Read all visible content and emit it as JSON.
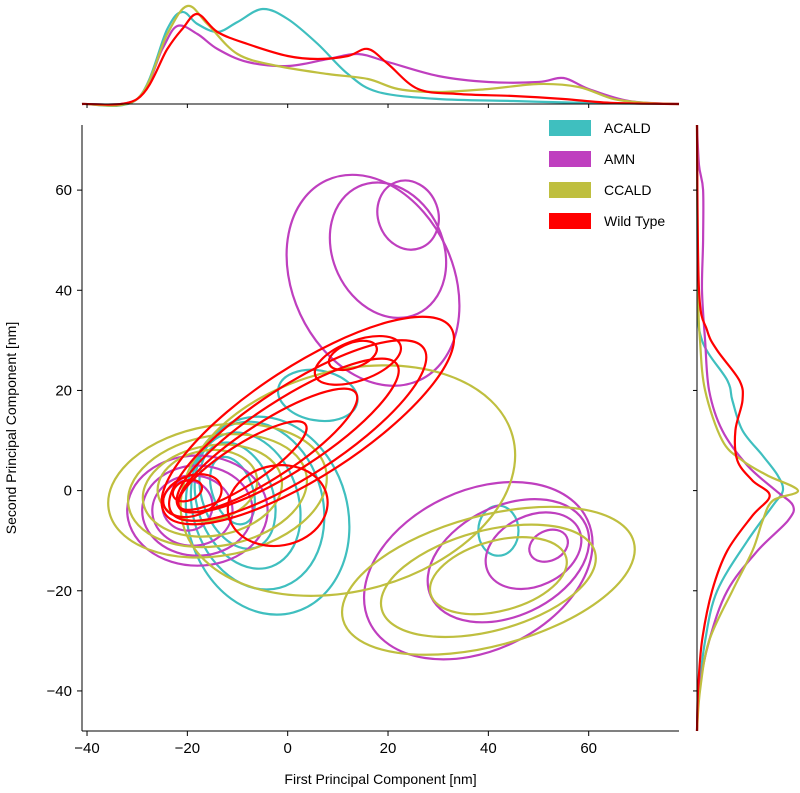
{
  "chart_data": {
    "type": "contour",
    "xlabel": "First Principal Component [nm]",
    "ylabel": "Second Principal Component [nm]",
    "xlim": [
      -41,
      78
    ],
    "ylim": [
      -48,
      73
    ],
    "xticks": [
      -40,
      -20,
      0,
      20,
      40,
      60
    ],
    "yticks": [
      -40,
      -20,
      0,
      20,
      40,
      60
    ],
    "xtick_labels": [
      "−40",
      "−20",
      "0",
      "20",
      "40",
      "60"
    ],
    "ytick_labels": [
      "−40",
      "−20",
      "0",
      "20",
      "40",
      "60"
    ],
    "legend_position": "top-right",
    "grid": false,
    "series": [
      {
        "name": "ACALD",
        "color": "#3fbfbf",
        "contours": [
          {
            "cx": -4,
            "cy": -5,
            "rx": 16,
            "ry": 20,
            "rot": -15
          },
          {
            "cx": -6,
            "cy": -3,
            "rx": 13,
            "ry": 17,
            "rot": -15
          },
          {
            "cx": -8,
            "cy": -2,
            "rx": 10,
            "ry": 14,
            "rot": -20
          },
          {
            "cx": -10,
            "cy": -1,
            "rx": 7,
            "ry": 11,
            "rot": -20
          },
          {
            "cx": -11,
            "cy": 0,
            "rx": 4,
            "ry": 7,
            "rot": -20
          },
          {
            "cx": 6,
            "cy": 19,
            "rx": 8,
            "ry": 5,
            "rot": 10
          },
          {
            "cx": 42,
            "cy": -8,
            "rx": 4,
            "ry": 5,
            "rot": 0
          }
        ],
        "marginal_x": [
          [
            -41,
            0
          ],
          [
            -30,
            0.05
          ],
          [
            -24,
            0.75
          ],
          [
            -21,
            0.92
          ],
          [
            -18,
            0.8
          ],
          [
            -14,
            0.72
          ],
          [
            -10,
            0.82
          ],
          [
            -5,
            0.95
          ],
          [
            0,
            0.85
          ],
          [
            6,
            0.6
          ],
          [
            12,
            0.3
          ],
          [
            18,
            0.12
          ],
          [
            30,
            0.05
          ],
          [
            45,
            0.03
          ],
          [
            60,
            0.01
          ],
          [
            78,
            0
          ]
        ],
        "marginal_y": [
          [
            -48,
            0
          ],
          [
            -40,
            0.02
          ],
          [
            -30,
            0.08
          ],
          [
            -20,
            0.2
          ],
          [
            -10,
            0.5
          ],
          [
            -3,
            0.75
          ],
          [
            0,
            0.85
          ],
          [
            3,
            0.8
          ],
          [
            7,
            0.65
          ],
          [
            12,
            0.45
          ],
          [
            18,
            0.35
          ],
          [
            22,
            0.3
          ],
          [
            30,
            0.05
          ],
          [
            40,
            0.01
          ],
          [
            73,
            0
          ]
        ]
      },
      {
        "name": "AMN",
        "color": "#bf3fbf",
        "contours": [
          {
            "cx": -18,
            "cy": -4,
            "rx": 14,
            "ry": 11,
            "rot": 0
          },
          {
            "cx": -18,
            "cy": -4,
            "rx": 11,
            "ry": 9,
            "rot": 0
          },
          {
            "cx": -19,
            "cy": -4,
            "rx": 8,
            "ry": 7,
            "rot": 0
          },
          {
            "cx": -20,
            "cy": -3,
            "rx": 5,
            "ry": 5,
            "rot": 0
          },
          {
            "cx": 17,
            "cy": 42,
            "rx": 16,
            "ry": 22,
            "rot": -25
          },
          {
            "cx": 20,
            "cy": 48,
            "rx": 11,
            "ry": 14,
            "rot": -25
          },
          {
            "cx": 24,
            "cy": 55,
            "rx": 6,
            "ry": 7,
            "rot": -20
          },
          {
            "cx": 38,
            "cy": -16,
            "rx": 24,
            "ry": 16,
            "rot": -25
          },
          {
            "cx": 44,
            "cy": -14,
            "rx": 17,
            "ry": 11,
            "rot": -25
          },
          {
            "cx": 49,
            "cy": -12,
            "rx": 10,
            "ry": 7,
            "rot": -25
          },
          {
            "cx": 52,
            "cy": -11,
            "rx": 4,
            "ry": 3,
            "rot": -25
          }
        ],
        "marginal_x": [
          [
            -41,
            0
          ],
          [
            -30,
            0.05
          ],
          [
            -25,
            0.55
          ],
          [
            -22,
            0.78
          ],
          [
            -18,
            0.7
          ],
          [
            -14,
            0.55
          ],
          [
            -8,
            0.42
          ],
          [
            0,
            0.38
          ],
          [
            8,
            0.45
          ],
          [
            14,
            0.5
          ],
          [
            20,
            0.42
          ],
          [
            30,
            0.28
          ],
          [
            40,
            0.22
          ],
          [
            50,
            0.22
          ],
          [
            55,
            0.26
          ],
          [
            60,
            0.15
          ],
          [
            68,
            0.03
          ],
          [
            78,
            0
          ]
        ],
        "marginal_y": [
          [
            -48,
            0
          ],
          [
            -40,
            0.02
          ],
          [
            -30,
            0.12
          ],
          [
            -20,
            0.3
          ],
          [
            -12,
            0.6
          ],
          [
            -6,
            0.9
          ],
          [
            -3,
            0.95
          ],
          [
            0,
            0.78
          ],
          [
            5,
            0.5
          ],
          [
            12,
            0.25
          ],
          [
            20,
            0.12
          ],
          [
            30,
            0.08
          ],
          [
            40,
            0.05
          ],
          [
            50,
            0.06
          ],
          [
            60,
            0.06
          ],
          [
            65,
            0.02
          ],
          [
            73,
            0
          ]
        ]
      },
      {
        "name": "CCALD",
        "color": "#bfbf3f",
        "contours": [
          {
            "cx": -14,
            "cy": 0,
            "rx": 22,
            "ry": 13,
            "rot": -10
          },
          {
            "cx": -14,
            "cy": 0,
            "rx": 18,
            "ry": 11,
            "rot": -10
          },
          {
            "cx": -15,
            "cy": 0,
            "rx": 14,
            "ry": 9,
            "rot": -10
          },
          {
            "cx": -16,
            "cy": 1,
            "rx": 10,
            "ry": 7,
            "rot": -10
          },
          {
            "cx": 12,
            "cy": 2,
            "rx": 34,
            "ry": 22,
            "rot": -15
          },
          {
            "cx": 40,
            "cy": -18,
            "rx": 30,
            "ry": 13,
            "rot": -15
          },
          {
            "cx": 40,
            "cy": -18,
            "rx": 22,
            "ry": 10,
            "rot": -15
          },
          {
            "cx": 42,
            "cy": -17,
            "rx": 14,
            "ry": 7,
            "rot": -15
          }
        ],
        "marginal_x": [
          [
            -41,
            0
          ],
          [
            -30,
            0.05
          ],
          [
            -24,
            0.7
          ],
          [
            -20,
            0.98
          ],
          [
            -16,
            0.8
          ],
          [
            -10,
            0.5
          ],
          [
            -2,
            0.38
          ],
          [
            8,
            0.3
          ],
          [
            16,
            0.25
          ],
          [
            22,
            0.15
          ],
          [
            30,
            0.12
          ],
          [
            40,
            0.15
          ],
          [
            50,
            0.2
          ],
          [
            58,
            0.17
          ],
          [
            65,
            0.05
          ],
          [
            72,
            0.01
          ],
          [
            78,
            0
          ]
        ],
        "marginal_y": [
          [
            -48,
            0
          ],
          [
            -40,
            0.03
          ],
          [
            -30,
            0.12
          ],
          [
            -20,
            0.35
          ],
          [
            -12,
            0.55
          ],
          [
            -6,
            0.65
          ],
          [
            -2,
            0.75
          ],
          [
            0,
            1.0
          ],
          [
            3,
            0.7
          ],
          [
            6,
            0.45
          ],
          [
            10,
            0.25
          ],
          [
            20,
            0.08
          ],
          [
            30,
            0.03
          ],
          [
            40,
            0.01
          ],
          [
            73,
            0
          ]
        ]
      },
      {
        "name": "Wild Type",
        "color": "#ff0000",
        "contours": [
          {
            "cx": 4,
            "cy": 14,
            "rx": 34,
            "ry": 11,
            "rot": -33
          },
          {
            "cx": 2,
            "cy": 12,
            "rx": 30,
            "ry": 9,
            "rot": -33
          },
          {
            "cx": 0,
            "cy": 11,
            "rx": 26,
            "ry": 7,
            "rot": -33
          },
          {
            "cx": -4,
            "cy": 8,
            "rx": 21,
            "ry": 5.5,
            "rot": -33
          },
          {
            "cx": -9,
            "cy": 5,
            "rx": 15,
            "ry": 4,
            "rot": -33
          },
          {
            "cx": -19,
            "cy": -1,
            "rx": 6,
            "ry": 4,
            "rot": -20
          },
          {
            "cx": -20,
            "cy": 0,
            "rx": 3,
            "ry": 2,
            "rot": -20
          },
          {
            "cx": 14,
            "cy": 26,
            "rx": 9,
            "ry": 4,
            "rot": -20
          },
          {
            "cx": 13,
            "cy": 27,
            "rx": 5,
            "ry": 2.5,
            "rot": -20
          },
          {
            "cx": -2,
            "cy": -3,
            "rx": 10,
            "ry": 8,
            "rot": -10
          }
        ],
        "marginal_x": [
          [
            -41,
            0
          ],
          [
            -30,
            0.05
          ],
          [
            -24,
            0.55
          ],
          [
            -21,
            0.75
          ],
          [
            -18,
            0.9
          ],
          [
            -14,
            0.72
          ],
          [
            -8,
            0.6
          ],
          [
            0,
            0.48
          ],
          [
            6,
            0.45
          ],
          [
            12,
            0.48
          ],
          [
            16,
            0.55
          ],
          [
            20,
            0.4
          ],
          [
            26,
            0.15
          ],
          [
            34,
            0.1
          ],
          [
            45,
            0.08
          ],
          [
            55,
            0.05
          ],
          [
            65,
            0.01
          ],
          [
            78,
            0
          ]
        ],
        "marginal_y": [
          [
            -48,
            0
          ],
          [
            -40,
            0.01
          ],
          [
            -30,
            0.05
          ],
          [
            -20,
            0.15
          ],
          [
            -12,
            0.3
          ],
          [
            -5,
            0.55
          ],
          [
            -1,
            0.72
          ],
          [
            2,
            0.55
          ],
          [
            6,
            0.4
          ],
          [
            12,
            0.38
          ],
          [
            18,
            0.45
          ],
          [
            22,
            0.42
          ],
          [
            28,
            0.2
          ],
          [
            32,
            0.1
          ],
          [
            40,
            0.02
          ],
          [
            73,
            0
          ]
        ]
      }
    ]
  }
}
